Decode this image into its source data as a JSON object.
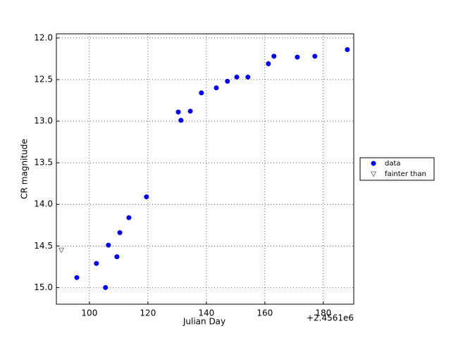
{
  "chart_data": {
    "type": "scatter",
    "xlabel": "Julian Day",
    "ylabel": "CR magnitude",
    "x_offset_label": "+2.4561e6",
    "xlim": [
      88.7,
      190.4
    ],
    "ylim": [
      15.2,
      11.95
    ],
    "xticks": [
      100,
      120,
      140,
      160,
      180
    ],
    "yticks": [
      {
        "value": 12.0,
        "label": "12.0"
      },
      12.5,
      {
        "value": 13.0,
        "label": "13.0"
      },
      13.5,
      {
        "value": 14.0,
        "label": "14.0"
      },
      14.5,
      {
        "value": 15.0,
        "label": "15.0"
      }
    ],
    "grid": true,
    "legend": "outside right",
    "series": [
      {
        "name": "data",
        "color": "#0000ff",
        "marker": "circle",
        "x": [
          95.7,
          102.4,
          105.5,
          106.5,
          109.4,
          110.4,
          113.5,
          119.5,
          130.4,
          131.3,
          134.5,
          138.3,
          143.4,
          147.2,
          150.4,
          154.2,
          161.2,
          163.1,
          171.1,
          177.1,
          188.2
        ],
        "values": [
          14.88,
          14.71,
          15.0,
          14.49,
          14.63,
          14.34,
          14.16,
          13.91,
          12.89,
          12.99,
          12.88,
          12.66,
          12.6,
          12.52,
          12.47,
          12.47,
          12.31,
          12.22,
          12.23,
          12.22,
          12.14
        ]
      },
      {
        "name": "fainter than",
        "color": "#808080",
        "marker": "triangle-down",
        "x": [
          90.4
        ],
        "values": [
          14.55
        ]
      }
    ]
  }
}
